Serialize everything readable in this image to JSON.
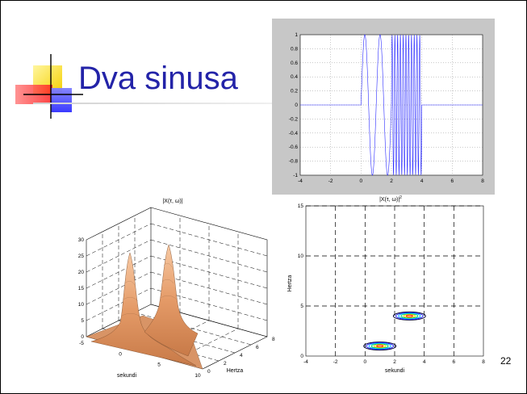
{
  "slide": {
    "title": "Dva sinusa",
    "page_number": "22"
  },
  "chart_data": [
    {
      "type": "line",
      "title": "",
      "xlabel": "",
      "ylabel": "",
      "xlim": [
        -4,
        8
      ],
      "ylim": [
        -1,
        1
      ],
      "x_ticks": [
        "-4",
        "-2",
        "0",
        "2",
        "4",
        "6",
        "8"
      ],
      "y_ticks": [
        "1",
        "0.8",
        "0.6",
        "0.4",
        "0.2",
        "0",
        "-0.2",
        "-0.4",
        "-0.6",
        "-0.8",
        "-1"
      ],
      "series": [
        {
          "description_only": false,
          "segments": [
            {
              "x_start": -4,
              "x_end": 0,
              "kind": "zero"
            },
            {
              "x_start": 0,
              "x_end": 2,
              "kind": "low-frequency sine",
              "cycles": 2
            },
            {
              "x_start": 2,
              "x_end": 4,
              "kind": "high-frequency sine",
              "cycles": 11
            },
            {
              "x_start": 4,
              "x_end": 8,
              "kind": "zero"
            }
          ]
        }
      ],
      "grid": true
    },
    {
      "type": "surface",
      "title": "|X(τ, ω)|",
      "xlabel": "sekundi",
      "ylabel": "Hertza",
      "x_ticks": [
        "-5",
        "0",
        "5",
        "10"
      ],
      "y_ticks": [
        "0",
        "2",
        "4",
        "6",
        "8"
      ],
      "z_ticks": [
        "0",
        "5",
        "10",
        "15",
        "20",
        "25",
        "30"
      ],
      "peaks": [
        {
          "sekundi": 1,
          "hertza": 1,
          "height": 20
        },
        {
          "sekundi": 3,
          "hertza": 4,
          "height": 20
        }
      ]
    },
    {
      "type": "contour",
      "title": "|X(τ, ω)|",
      "title_sup": "2",
      "xlabel": "sekundi",
      "ylabel": "Hertza",
      "xlim": [
        -4,
        8
      ],
      "ylim": [
        0,
        15
      ],
      "x_ticks": [
        "-4",
        "-2",
        "0",
        "2",
        "4",
        "6",
        "8"
      ],
      "y_ticks": [
        "15",
        "10",
        "5",
        "0"
      ],
      "blobs": [
        {
          "x": 1,
          "y": 1
        },
        {
          "x": 3,
          "y": 4
        }
      ],
      "grid": true
    }
  ]
}
